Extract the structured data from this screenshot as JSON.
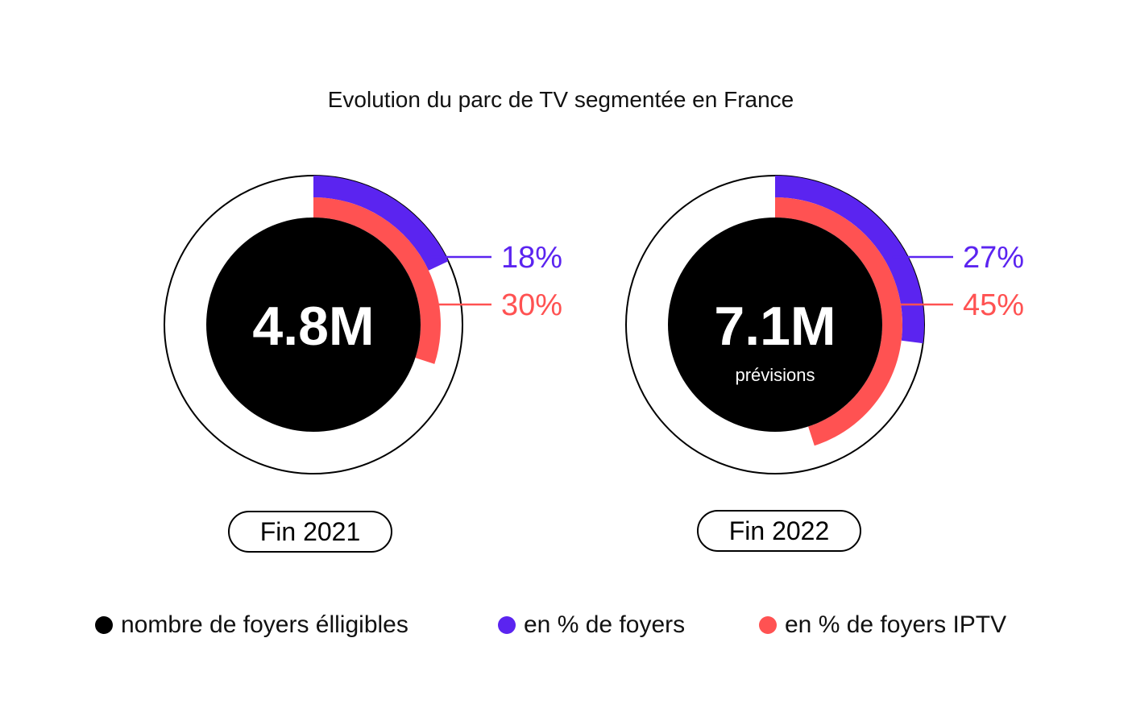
{
  "title": "Evolution du parc de TV segmentée en France",
  "colors": {
    "households": "#000000",
    "share_households": "#5b24f0",
    "share_iptv": "#ff5252",
    "ring": "#000000"
  },
  "chart_data": {
    "type": "pie",
    "title": "Evolution du parc de TV segmentée en France",
    "charts": [
      {
        "period": "Fin 2021",
        "households_label": "4.8M",
        "note": "",
        "share_households_pct": 18,
        "share_households_label": "18%",
        "share_iptv_pct": 30,
        "share_iptv_label": "30%"
      },
      {
        "period": "Fin 2022",
        "households_label": "7.1M",
        "note": "prévisions",
        "share_households_pct": 27,
        "share_households_label": "27%",
        "share_iptv_pct": 45,
        "share_iptv_label": "45%"
      }
    ],
    "legend": {
      "placement": "bottom",
      "entries": [
        {
          "name": "nombre de foyers élligibles",
          "color": "#000000"
        },
        {
          "name": "en % de foyers",
          "color": "#5b24f0"
        },
        {
          "name": "en % de foyers IPTV",
          "color": "#ff5252"
        }
      ]
    }
  }
}
